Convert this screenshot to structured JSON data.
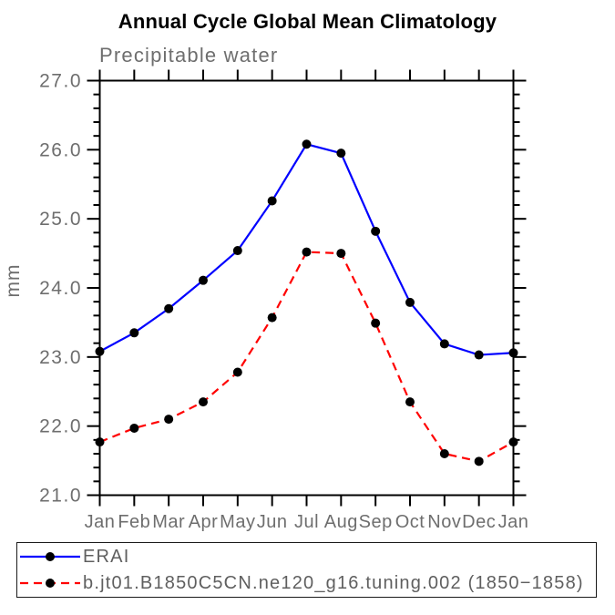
{
  "chart": {
    "title": "Annual Cycle Global Mean Climatology",
    "subtitle": "Precipitable water",
    "ylabel": "mm"
  },
  "chart_data": {
    "type": "line",
    "title": "Annual Cycle Global Mean Climatology",
    "subtitle": "Precipitable water",
    "xlabel": "",
    "ylabel": "mm",
    "categories": [
      "Jan",
      "Feb",
      "Mar",
      "Apr",
      "May",
      "Jun",
      "Jul",
      "Aug",
      "Sep",
      "Oct",
      "Nov",
      "Dec",
      "Jan"
    ],
    "series": [
      {
        "name": "ERAI",
        "color": "#0000ff",
        "line_style": "solid",
        "marker": "filled-circle",
        "marker_color": "#000000",
        "values": [
          23.08,
          23.35,
          23.7,
          24.11,
          24.54,
          25.26,
          26.08,
          25.95,
          24.82,
          23.79,
          23.19,
          23.03,
          23.06
        ]
      },
      {
        "name": "b.jt01.B1850C5CN.ne120_g16.tuning.002 (1850−1858)",
        "color": "#ff0000",
        "line_style": "dashed",
        "marker": "filled-circle",
        "marker_color": "#000000",
        "values": [
          21.77,
          21.97,
          22.1,
          22.35,
          22.78,
          23.57,
          24.52,
          24.5,
          23.49,
          22.35,
          21.6,
          21.49,
          21.77
        ]
      }
    ],
    "ylim": [
      21.0,
      27.0
    ],
    "ytick_major_step": 1.0,
    "ytick_minor_step": 0.2,
    "ytick_labels": [
      "27.0",
      "26.0",
      "25.0",
      "24.0",
      "23.0",
      "22.0",
      "21.0"
    ],
    "grid": false,
    "legend_position": "bottom-left-box"
  },
  "colors": {
    "background": "#ffffff",
    "axis": "#000000",
    "label_gray": "#6e6e6e",
    "erai_blue": "#0000ff",
    "model_red": "#ff0000",
    "marker_black": "#000000"
  }
}
